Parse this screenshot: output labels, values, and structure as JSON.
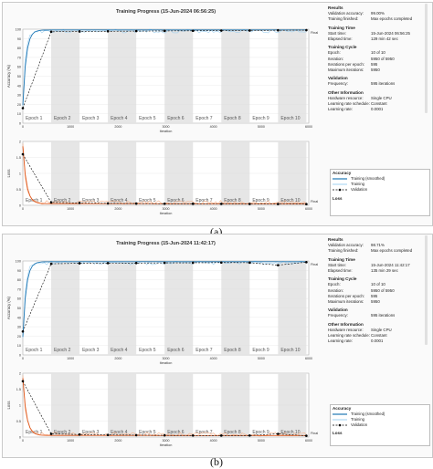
{
  "panels": [
    {
      "caption": "(a)",
      "title": "Training Progress (15-Jun-2024 06:56:25)",
      "final_label": "Final",
      "acc_ylabel": "Accuracy (%)",
      "loss_ylabel": "Loss",
      "xlabel": "Iteration",
      "epochs": [
        "Epoch 1",
        "Epoch 2",
        "Epoch 3",
        "Epoch 4",
        "Epoch 5",
        "Epoch 6",
        "Epoch 7",
        "Epoch 8",
        "Epoch 9",
        "Epoch 10"
      ],
      "acc_yticks": [
        "100",
        "90",
        "80",
        "70",
        "60",
        "50",
        "40",
        "30",
        "20",
        "10",
        "0"
      ],
      "loss_yticks": [
        "2",
        "1.5",
        "1",
        "0.5",
        "0"
      ],
      "xticks": [
        "0",
        "1000",
        "2000",
        "3000",
        "4000",
        "5000",
        "6000"
      ],
      "val_acc": [
        16,
        97.3,
        97.6,
        97.8,
        98.0,
        98.2,
        98.3,
        98.5,
        98.6,
        98.8,
        99.0
      ],
      "val_loss": [
        1.6,
        0.09,
        0.075,
        0.06,
        0.055,
        0.05,
        0.048,
        0.045,
        0.042,
        0.04,
        0.037
      ],
      "info": {
        "results_h": "Results",
        "val_acc_k": "Validation accuracy:",
        "val_acc_v": "99.00%",
        "train_fin_k": "Training finished:",
        "train_fin_v": "Max epochs completed",
        "time_h": "Training Time",
        "start_k": "Start time:",
        "start_v": "15-Jun-2024 06:56:25",
        "elapsed_k": "Elapsed time:",
        "elapsed_v": "129 min 42 sec",
        "cycle_h": "Training Cycle",
        "epoch_k": "Epoch:",
        "epoch_v": "10 of 10",
        "iter_k": "Iteration:",
        "iter_v": "5950 of 5950",
        "ipe_k": "Iterations per epoch:",
        "ipe_v": "595",
        "maxit_k": "Maximum iterations:",
        "maxit_v": "5950",
        "valid_h": "Validation",
        "freq_k": "Frequency:",
        "freq_v": "595 iterations",
        "other_h": "Other Information",
        "hw_k": "Hardware resource:",
        "hw_v": "Single CPU",
        "lrs_k": "Learning rate schedule:",
        "lrs_v": "Constant",
        "lr_k": "Learning rate:",
        "lr_v": "0.0001"
      },
      "legend": {
        "acc_h": "Accuracy",
        "smoothed": "Training (smoothed)",
        "training": "Training",
        "validation": "Validation",
        "loss_h": "Loss"
      }
    },
    {
      "caption": "(b)",
      "title": "Training Progress (15-Jun-2024 11:42:17)",
      "final_label": "Final",
      "acc_ylabel": "Accuracy (%)",
      "loss_ylabel": "Loss",
      "xlabel": "Iteration",
      "epochs": [
        "Epoch 1",
        "Epoch 2",
        "Epoch 3",
        "Epoch 4",
        "Epoch 5",
        "Epoch 6",
        "Epoch 7",
        "Epoch 8",
        "Epoch 9",
        "Epoch 10"
      ],
      "acc_yticks": [
        "100",
        "90",
        "80",
        "70",
        "60",
        "50",
        "40",
        "30",
        "20",
        "10",
        "0"
      ],
      "loss_yticks": [
        "2",
        "1.5",
        "1",
        "0.5",
        "0"
      ],
      "xticks": [
        "0",
        "1000",
        "2000",
        "3000",
        "4000",
        "5000",
        "6000"
      ],
      "val_acc": [
        25,
        97.0,
        97.5,
        97.7,
        97.8,
        98.0,
        98.1,
        98.3,
        98.2,
        95.5,
        98.7
      ],
      "val_loss": [
        1.75,
        0.1,
        0.08,
        0.065,
        0.06,
        0.055,
        0.05,
        0.048,
        0.05,
        0.1,
        0.04
      ],
      "info": {
        "results_h": "Results",
        "val_acc_k": "Validation accuracy:",
        "val_acc_v": "98.71%",
        "train_fin_k": "Training finished:",
        "train_fin_v": "Max epochs completed",
        "time_h": "Training Time",
        "start_k": "Start time:",
        "start_v": "15-Jun-2024 11:42:17",
        "elapsed_k": "Elapsed time:",
        "elapsed_v": "135 min 29 sec",
        "cycle_h": "Training Cycle",
        "epoch_k": "Epoch:",
        "epoch_v": "10 of 10",
        "iter_k": "Iteration:",
        "iter_v": "5950 of 5950",
        "ipe_k": "Iterations per epoch:",
        "ipe_v": "595",
        "maxit_k": "Maximum iterations:",
        "maxit_v": "5950",
        "valid_h": "Validation",
        "freq_k": "Frequency:",
        "freq_v": "595 iterations",
        "other_h": "Other Information",
        "hw_k": "Hardware resource:",
        "hw_v": "Single CPU",
        "lrs_k": "Learning rate schedule:",
        "lrs_v": "Constant",
        "lr_k": "Learning rate:",
        "lr_v": "0.0001"
      },
      "legend": {
        "acc_h": "Accuracy",
        "smoothed": "Training (smoothed)",
        "training": "Training",
        "validation": "Validation",
        "loss_h": "Loss"
      }
    }
  ],
  "colors": {
    "acc_line": "#1f77b4",
    "acc_light": "#9fd0f0",
    "loss_line": "#e0571a",
    "loss_light": "#f4b08a",
    "shade": "#e6e6e6"
  }
}
